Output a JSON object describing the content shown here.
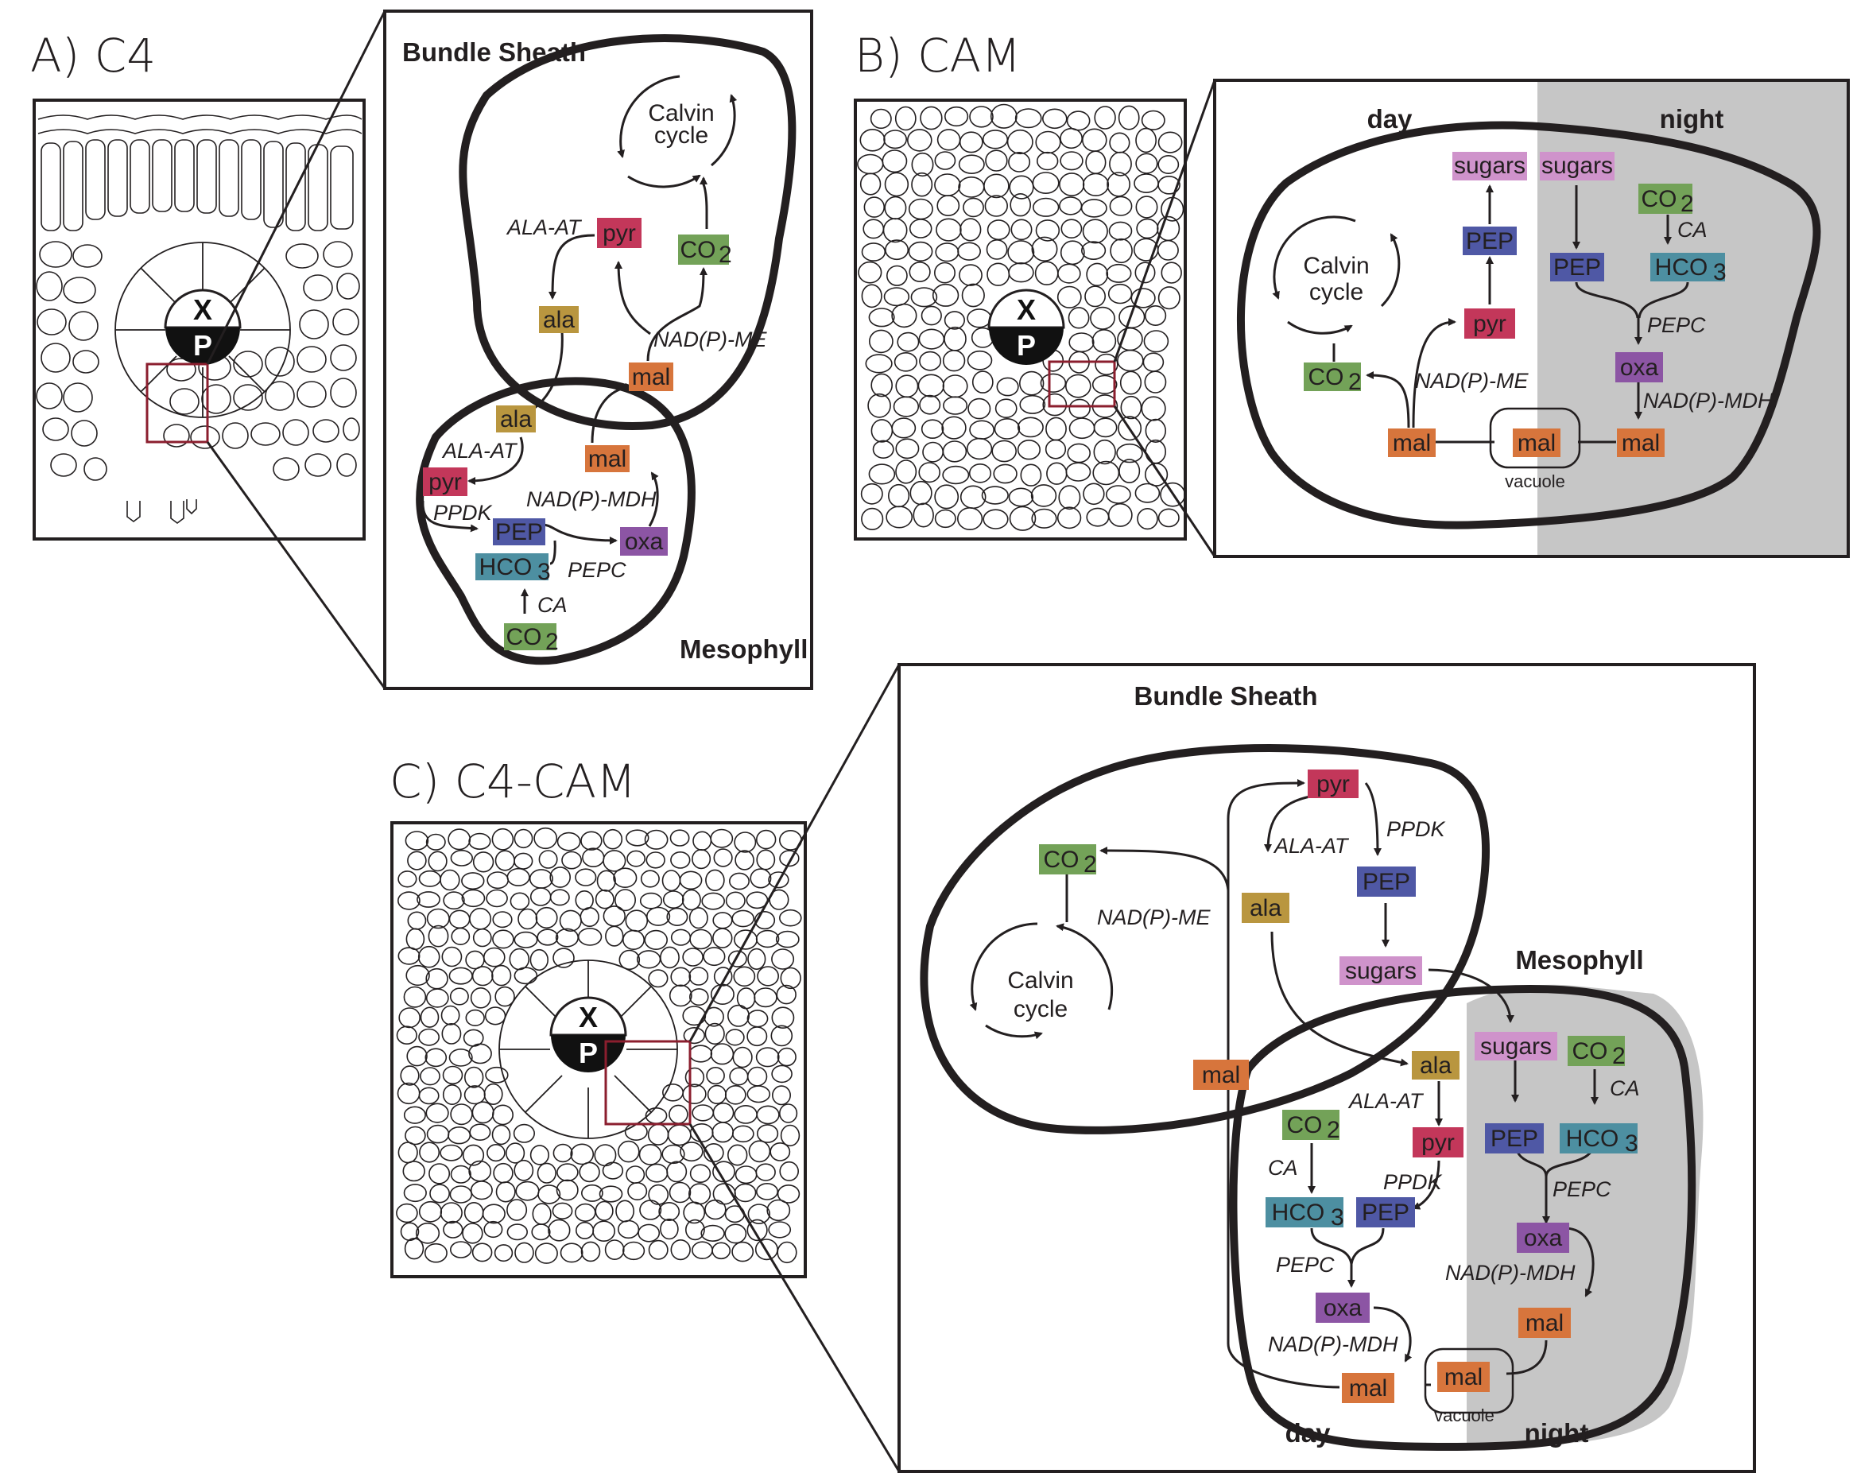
{
  "colors": {
    "pyr": "#c3375a",
    "ala": "#b9963f",
    "mal": "#d7753c",
    "co2": "#73a258",
    "pep": "#4f58a5",
    "hco3": "#4d8fa1",
    "oxa": "#8c55a4",
    "sugars": "#cf93cb",
    "night": "#c6c6c6",
    "zoom": "#8b1e2e"
  },
  "labels": {
    "a_title": "A) C4",
    "b_title": "B) CAM",
    "c_title": "C) C4-CAM",
    "bundle_sheath": "Bundle Sheath",
    "mesophyll": "Mesophyll",
    "calvin_1": "Calvin",
    "calvin_2": "cycle",
    "day": "day",
    "night": "night",
    "vacuole": "vacuole",
    "x": "X",
    "p": "P"
  },
  "metabolites": {
    "pyr": "pyr",
    "ala": "ala",
    "mal": "mal",
    "co2": "CO",
    "co2_sub": "2",
    "pep": "PEP",
    "hco3": "HCO",
    "hco3_sub": "3",
    "oxa": "oxa",
    "sugars": "sugars"
  },
  "enzymes": {
    "ala_at": "ALA-AT",
    "nadp_me": "NAD(P)-ME",
    "nadp_mdh": "NAD(P)-MDH",
    "ppdk": "PPDK",
    "pepc": "PEPC",
    "ca": "CA"
  }
}
